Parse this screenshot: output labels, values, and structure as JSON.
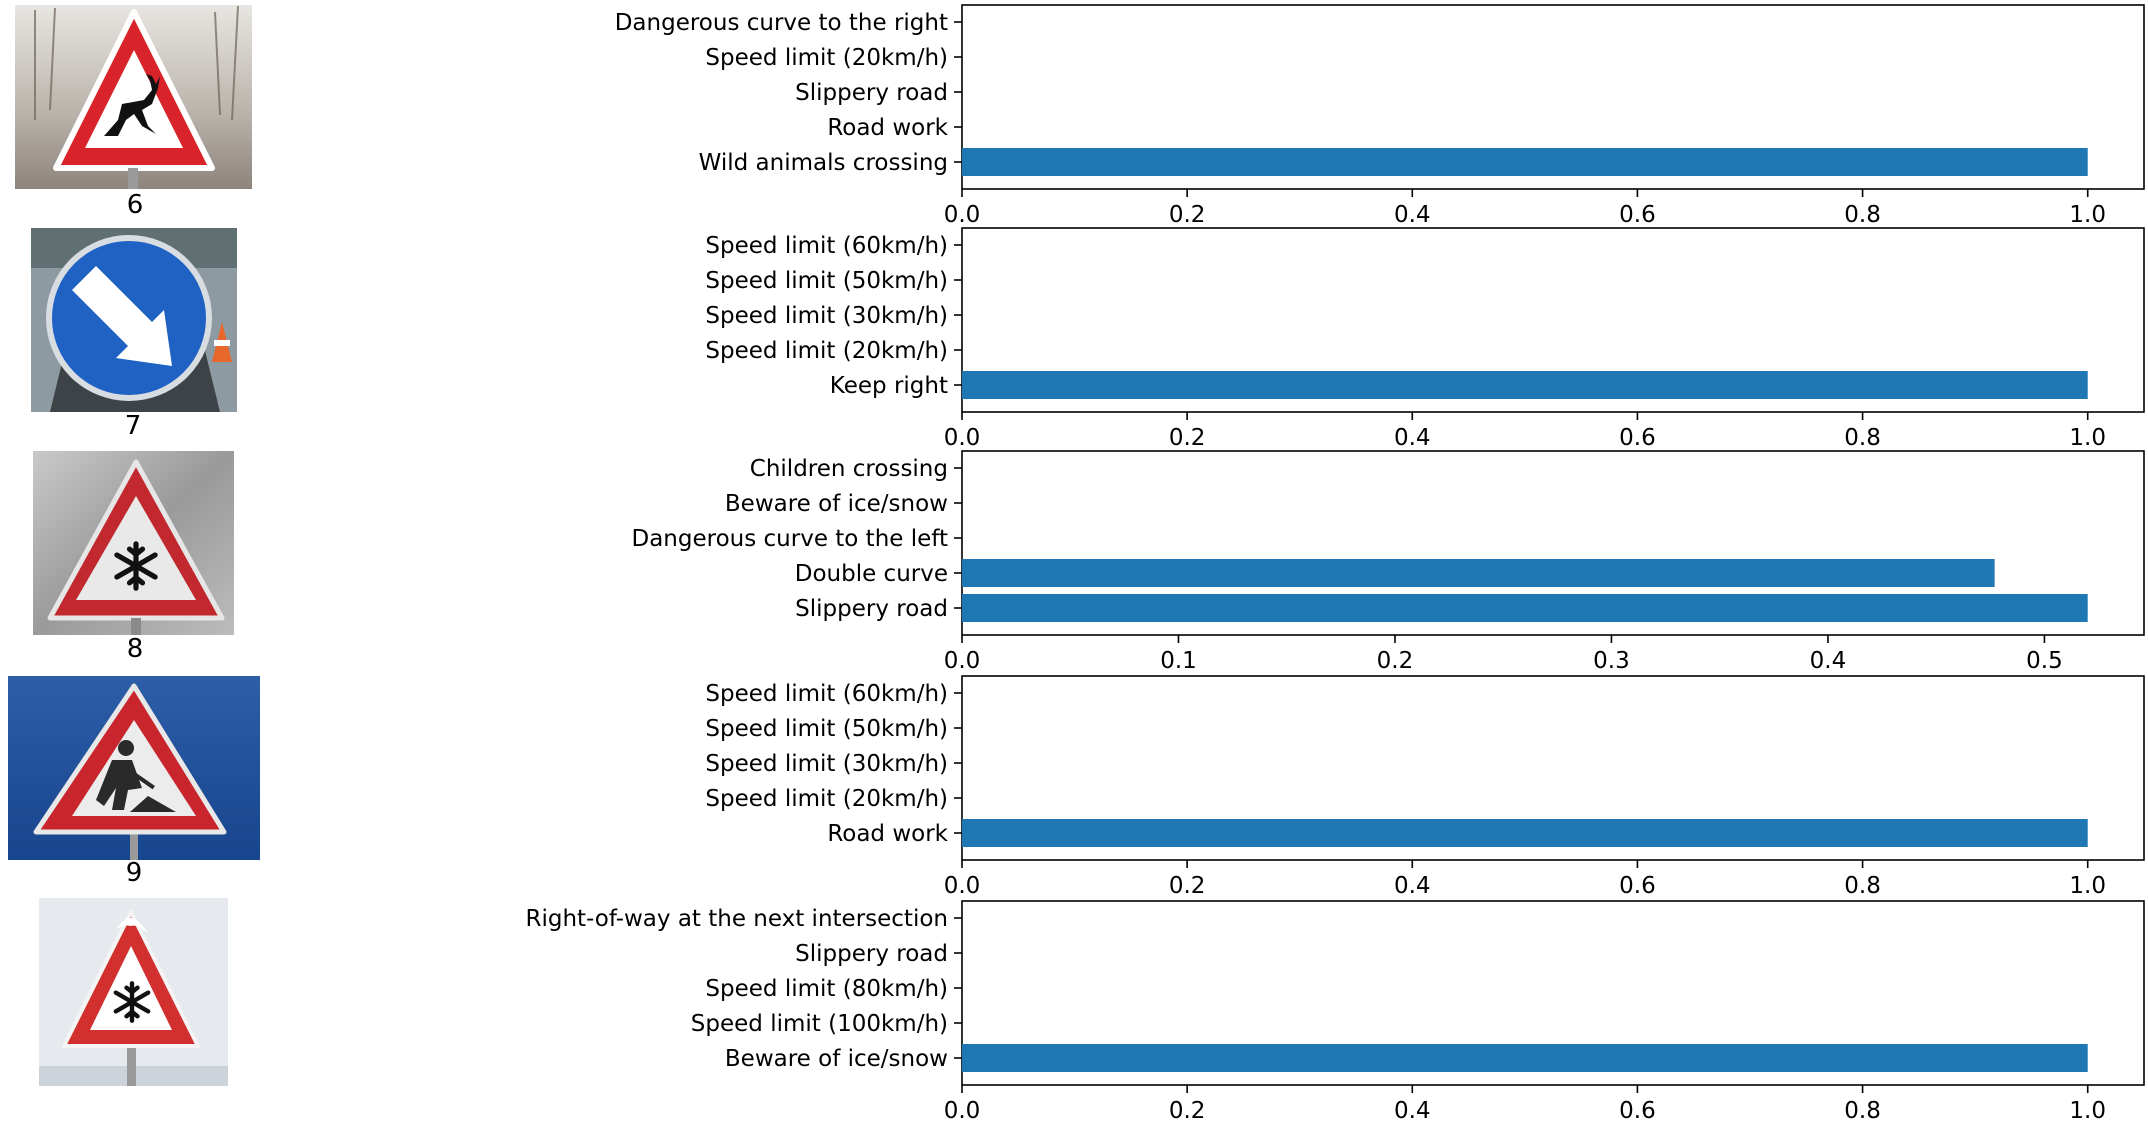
{
  "theme": {
    "bar_color": "#1f77b4",
    "axis_color": "#000000",
    "background": "#ffffff"
  },
  "signs": [
    {
      "caption": "6",
      "icon": "wild-animals-crossing-sign",
      "image_content": "red triangular warning sign with a leaping deer on a white field, wintry trees behind"
    },
    {
      "caption": "7",
      "icon": "keep-right-sign",
      "image_content": "round blue sign with a white arrow pointing down-right, traffic cones behind"
    },
    {
      "caption": "8",
      "icon": "beware-of-ice-snow-sign",
      "image_content": "frosted red triangular warning sign with a black snowflake"
    },
    {
      "caption": "9",
      "icon": "road-work-sign",
      "image_content": "red triangular warning sign with a worker shovelling, against a blue sky"
    },
    {
      "caption": "",
      "icon": "beware-of-ice-snow-sign",
      "image_content": "snow-topped red triangular warning sign with a black snowflake, pale background"
    }
  ],
  "chart_data": [
    {
      "type": "bar",
      "orientation": "horizontal",
      "categories": [
        "Wild animals crossing",
        "Road work",
        "Slippery road",
        "Speed limit (20km/h)",
        "Dangerous curve to the right"
      ],
      "values": [
        1.0,
        0.0,
        0.0,
        0.0,
        0.0
      ],
      "xlim": [
        0,
        1.05
      ],
      "xticks": [
        "0.0",
        "0.2",
        "0.4",
        "0.6",
        "0.8",
        "1.0"
      ],
      "title": "",
      "xlabel": "",
      "ylabel": "",
      "grid": false
    },
    {
      "type": "bar",
      "orientation": "horizontal",
      "categories": [
        "Keep right",
        "Speed limit (20km/h)",
        "Speed limit (30km/h)",
        "Speed limit (50km/h)",
        "Speed limit (60km/h)"
      ],
      "values": [
        1.0,
        0.0,
        0.0,
        0.0,
        0.0
      ],
      "xlim": [
        0,
        1.05
      ],
      "xticks": [
        "0.0",
        "0.2",
        "0.4",
        "0.6",
        "0.8",
        "1.0"
      ],
      "title": "",
      "xlabel": "",
      "ylabel": "",
      "grid": false
    },
    {
      "type": "bar",
      "orientation": "horizontal",
      "categories": [
        "Slippery road",
        "Double curve",
        "Dangerous curve to the left",
        "Beware of ice/snow",
        "Children crossing"
      ],
      "values": [
        0.52,
        0.477,
        0.0,
        0.0,
        0.0
      ],
      "xlim": [
        0,
        0.546
      ],
      "xticks": [
        "0.0",
        "0.1",
        "0.2",
        "0.3",
        "0.4",
        "0.5"
      ],
      "title": "",
      "xlabel": "",
      "ylabel": "",
      "grid": false
    },
    {
      "type": "bar",
      "orientation": "horizontal",
      "categories": [
        "Road work",
        "Speed limit (20km/h)",
        "Speed limit (30km/h)",
        "Speed limit (50km/h)",
        "Speed limit (60km/h)"
      ],
      "values": [
        1.0,
        0.0,
        0.0,
        0.0,
        0.0
      ],
      "xlim": [
        0,
        1.05
      ],
      "xticks": [
        "0.0",
        "0.2",
        "0.4",
        "0.6",
        "0.8",
        "1.0"
      ],
      "title": "",
      "xlabel": "",
      "ylabel": "",
      "grid": false
    },
    {
      "type": "bar",
      "orientation": "horizontal",
      "categories": [
        "Beware of ice/snow",
        "Speed limit (100km/h)",
        "Speed limit (80km/h)",
        "Slippery road",
        "Right-of-way at the next intersection"
      ],
      "values": [
        1.0,
        0.0,
        0.0,
        0.0,
        0.0
      ],
      "xlim": [
        0,
        1.05
      ],
      "xticks": [
        "0.0",
        "0.2",
        "0.4",
        "0.6",
        "0.8",
        "1.0"
      ],
      "title": "",
      "xlabel": "",
      "ylabel": "",
      "grid": false
    }
  ]
}
